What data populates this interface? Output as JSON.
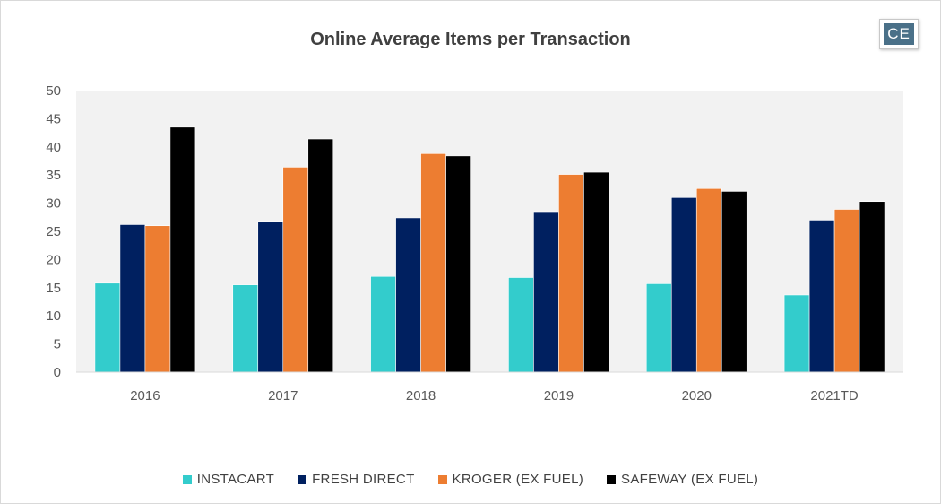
{
  "chart_data": {
    "type": "bar",
    "title": "Online Average Items per Transaction",
    "xlabel": "",
    "ylabel": "",
    "ylim": [
      0,
      50
    ],
    "yticks": [
      0,
      5,
      10,
      15,
      20,
      25,
      30,
      35,
      40,
      45,
      50
    ],
    "categories": [
      "2016",
      "2017",
      "2018",
      "2019",
      "2020",
      "2021TD"
    ],
    "series": [
      {
        "name": "INSTACART",
        "color": "#33cccc",
        "values": [
          15.8,
          15.5,
          17.0,
          16.8,
          15.7,
          13.7
        ]
      },
      {
        "name": "FRESH DIRECT",
        "color": "#002060",
        "values": [
          26.2,
          26.8,
          27.4,
          28.5,
          31.0,
          27.0
        ]
      },
      {
        "name": "KROGER (EX FUEL)",
        "color": "#ed7d31",
        "values": [
          26.0,
          36.4,
          38.8,
          35.1,
          32.6,
          28.9
        ]
      },
      {
        "name": "SAFEWAY (EX FUEL)",
        "color": "#000000",
        "values": [
          43.5,
          41.4,
          38.4,
          35.5,
          32.1,
          30.3
        ]
      }
    ],
    "grid": false,
    "legend_position": "bottom",
    "plot_background": "#f2f2f2"
  },
  "logo": {
    "text": "CE"
  }
}
